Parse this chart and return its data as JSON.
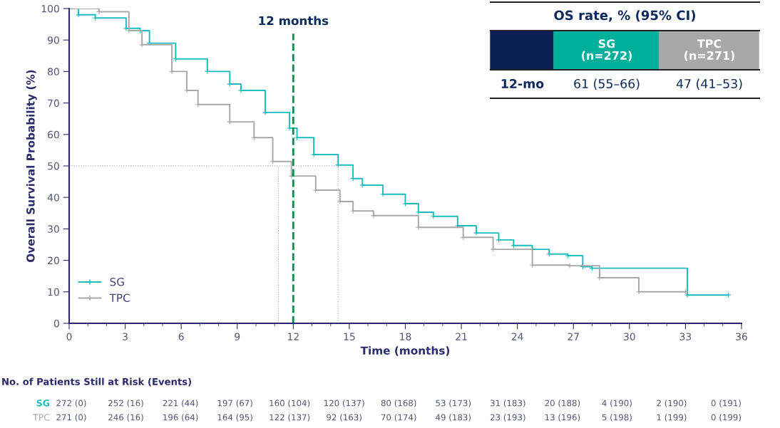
{
  "chart_data": {
    "type": "step",
    "xlabel": "Time (months)",
    "ylabel": "Overall Survival Probability (%)",
    "xlim": [
      0,
      36
    ],
    "ylim": [
      0,
      100
    ],
    "xticks": [
      0,
      3,
      6,
      9,
      12,
      15,
      18,
      21,
      24,
      27,
      30,
      33,
      36
    ],
    "yticks": [
      0,
      10,
      20,
      30,
      40,
      50,
      60,
      70,
      80,
      90,
      100
    ],
    "series": [
      {
        "name": "SG",
        "color": "#1bbcbc",
        "x": [
          0,
          0.5,
          1.4,
          3.05,
          3.8,
          4.3,
          5.7,
          7.4,
          8.6,
          9.2,
          10.5,
          11.8,
          12.2,
          13.1,
          14.4,
          15.2,
          15.7,
          16.8,
          18,
          18.7,
          19.5,
          20.8,
          21.8,
          23,
          23.8,
          24.8,
          25.7,
          26.7,
          27.5,
          28,
          33.1,
          35.3
        ],
        "values": [
          100,
          98,
          97,
          93.7,
          93,
          89,
          84,
          80,
          76,
          74,
          67,
          62,
          59,
          53.6,
          50.3,
          46,
          43.9,
          41,
          38,
          35.3,
          34,
          31,
          28.7,
          26.5,
          24.7,
          23.5,
          22,
          21.5,
          18,
          17.5,
          9,
          9
        ]
      },
      {
        "name": "TPC",
        "color": "#a8a8a8",
        "x": [
          0,
          1.6,
          3.2,
          3.9,
          5.5,
          6.3,
          6.9,
          8.6,
          9.9,
          10.9,
          11.9,
          13.2,
          14.5,
          15.2,
          16.3,
          18.7,
          21.1,
          22.7,
          24.8,
          26.8,
          28.4,
          30.5,
          33
        ],
        "values": [
          100,
          99,
          93,
          88.5,
          80,
          74,
          69.5,
          64,
          59,
          51.4,
          46.8,
          42.3,
          38.7,
          35.7,
          34.2,
          30.5,
          27.3,
          23.5,
          18.5,
          18.3,
          14.5,
          10,
          10
        ]
      }
    ],
    "ref_lines": [
      {
        "axis": "x",
        "value": 12,
        "label": "12 months",
        "color": "#138a4a",
        "line_style": "dashed"
      },
      {
        "axis": "y",
        "value": 50,
        "color": "#b0b0c8",
        "line_style": "dotted"
      },
      {
        "axis": "x",
        "value": 11.2,
        "color": "#b0b0c8",
        "line_style": "dotted"
      },
      {
        "axis": "x",
        "value": 14.4,
        "color": "#b0b0c8",
        "line_style": "dotted"
      }
    ],
    "marker": "cross",
    "legend": "bottom left",
    "grid": false,
    "annotations": [
      "No. of Patients Still at Risk (Events)",
      "SG",
      "272 (0)",
      "252 (16)",
      "221 (44)",
      "197 (67)",
      "160 (104)",
      "120 (137)",
      "80 (168)",
      "53 (173)",
      "31 (183)",
      "20 (188)",
      "4 (190)",
      "2 (190)",
      "0 (191)",
      "TPC",
      "271 (0)",
      "246 (16)",
      "196 (64)",
      "164 (95)",
      "122 (137)",
      "92 (163)",
      "70 (174)",
      "49 (183)",
      "23 (193)",
      "13 (196)",
      "5 (198)",
      "1 (199)",
      "0 (199)",
      "OS rate, % (95% CI)",
      "SG\n(n=272)",
      "TPC\n(n=271)",
      "12-mo",
      "61 (55–66)",
      "47 (41–53)"
    ]
  }
}
